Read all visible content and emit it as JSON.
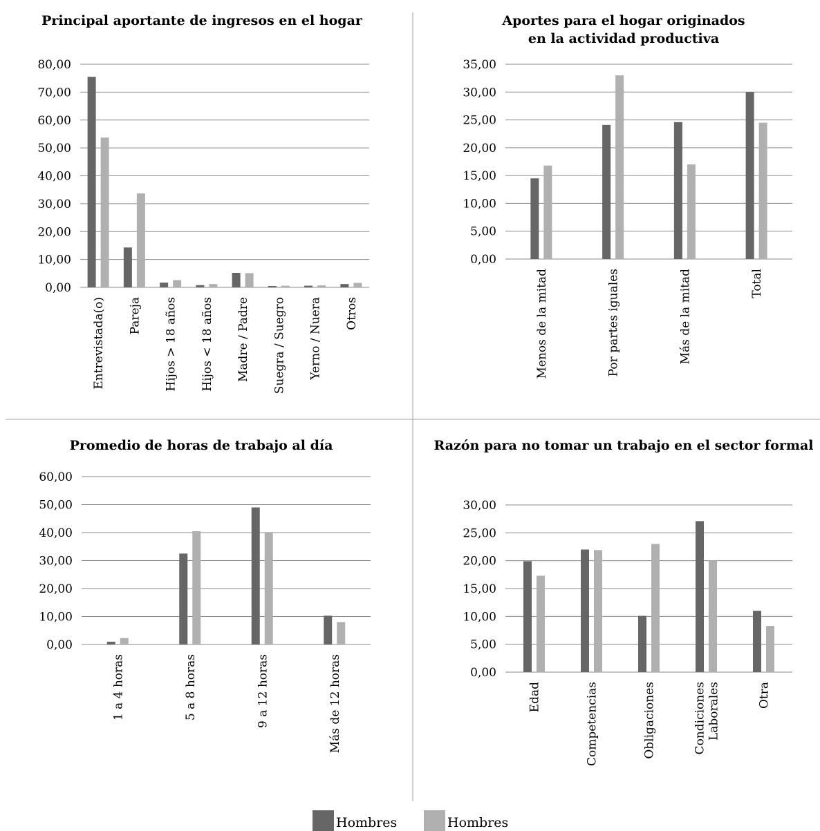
{
  "colors": {
    "series1": "#666666",
    "series2": "#b0b0b0",
    "grid": "#8a8a8a",
    "divider": "#a0a0a0"
  },
  "chart_data": [
    {
      "type": "bar",
      "title": [
        "Principal aportante de ingresos en el hogar"
      ],
      "categories": [
        [
          "Entrevistada(o)"
        ],
        [
          "Pareja"
        ],
        [
          "Hijos > 18 años"
        ],
        [
          "Hijos < 18 años"
        ],
        [
          "Madre / Padre"
        ],
        [
          "Suegra / Suegro"
        ],
        [
          "Yerno / Nuera"
        ],
        [
          "Otros"
        ]
      ],
      "series": [
        {
          "name": "Hombres",
          "values": [
            75.5,
            14.3,
            1.7,
            0.8,
            5.2,
            0.5,
            0.6,
            1.2
          ]
        },
        {
          "name": "Hombres",
          "values": [
            53.7,
            33.7,
            2.6,
            1.2,
            5.1,
            0.6,
            0.7,
            1.6
          ]
        }
      ],
      "yticks": [
        "0,00",
        "10,00",
        "20,00",
        "30,00",
        "40,00",
        "50,00",
        "60,00",
        "70,00",
        "80,00"
      ],
      "ylim": [
        0,
        80
      ],
      "grid": true
    },
    {
      "type": "bar",
      "title": [
        "Aportes para el hogar originados",
        "en la actividad productiva"
      ],
      "categories": [
        [
          "Menos de la mitad"
        ],
        [
          "Por partes iguales"
        ],
        [
          "Más de la mitad"
        ],
        [
          "Total"
        ]
      ],
      "series": [
        {
          "name": "Hombres",
          "values": [
            14.5,
            24.1,
            24.6,
            30.0
          ]
        },
        {
          "name": "Hombres",
          "values": [
            16.8,
            33.0,
            17.0,
            24.5
          ]
        }
      ],
      "yticks": [
        "0,00",
        "5,00",
        "10,00",
        "15,00",
        "20,00",
        "25,00",
        "30,00",
        "35,00"
      ],
      "ylim": [
        0,
        35
      ],
      "grid": true
    },
    {
      "type": "bar",
      "title": [
        "Promedio de horas de trabajo al día"
      ],
      "categories": [
        [
          "1 a 4 horas"
        ],
        [
          "5 a 8 horas"
        ],
        [
          "9 a 12 horas"
        ],
        [
          "Más de 12 horas"
        ]
      ],
      "series": [
        {
          "name": "Hombres",
          "values": [
            1.0,
            32.5,
            49.0,
            10.3
          ]
        },
        {
          "name": "Hombres",
          "values": [
            2.3,
            40.5,
            40.2,
            8.0
          ]
        }
      ],
      "yticks": [
        "0,00",
        "10,00",
        "20,00",
        "30,00",
        "40,00",
        "50,00",
        "60,00"
      ],
      "ylim": [
        0,
        60
      ],
      "grid": true
    },
    {
      "type": "bar",
      "title": [
        "Razón para no tomar un trabajo en el sector formal"
      ],
      "categories": [
        [
          "Edad"
        ],
        [
          "Competencias"
        ],
        [
          "Obligaciones"
        ],
        [
          "Condiciones",
          "Laborales"
        ],
        [
          "Otra"
        ]
      ],
      "series": [
        {
          "name": "Hombres",
          "values": [
            19.9,
            22.0,
            10.1,
            27.1,
            11.0
          ]
        },
        {
          "name": "Hombres",
          "values": [
            17.3,
            21.9,
            23.0,
            20.0,
            8.3
          ]
        }
      ],
      "yticks": [
        "0,00",
        "5,00",
        "10,00",
        "15,00",
        "20,00",
        "25,00",
        "30,00"
      ],
      "ylim": [
        0,
        30
      ],
      "grid": true
    }
  ],
  "legend": {
    "position": "bottom-center",
    "items": [
      "Hombres",
      "Hombres"
    ]
  }
}
